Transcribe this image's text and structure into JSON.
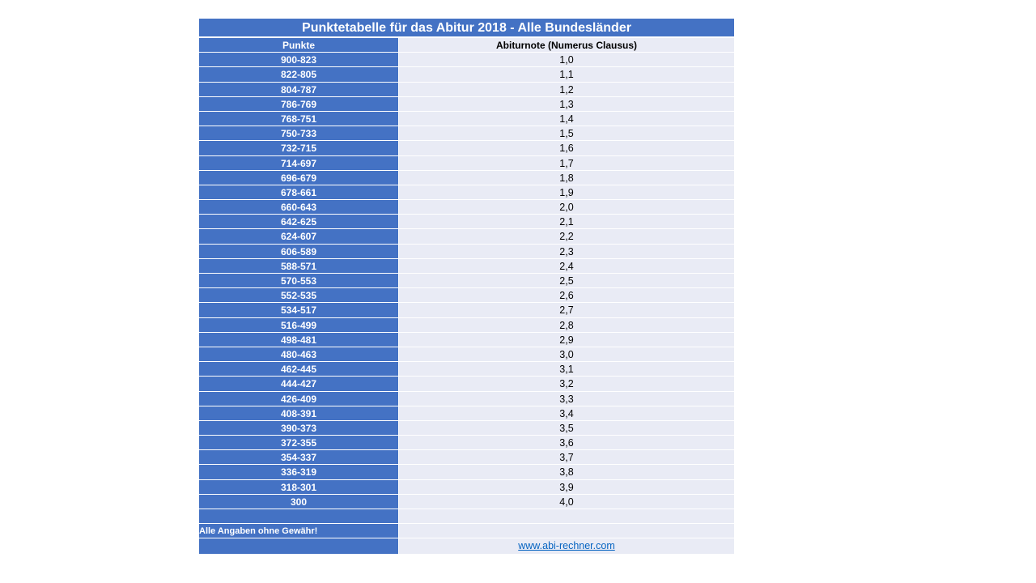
{
  "title": "Punktetabelle für das Abitur 2018 - Alle Bundesländer",
  "columns": [
    "Punkte",
    "Abiturnote (Numerus Clausus)"
  ],
  "rows": [
    [
      "900-823",
      "1,0"
    ],
    [
      "822-805",
      "1,1"
    ],
    [
      "804-787",
      "1,2"
    ],
    [
      "786-769",
      "1,3"
    ],
    [
      "768-751",
      "1,4"
    ],
    [
      "750-733",
      "1,5"
    ],
    [
      "732-715",
      "1,6"
    ],
    [
      "714-697",
      "1,7"
    ],
    [
      "696-679",
      "1,8"
    ],
    [
      "678-661",
      "1,9"
    ],
    [
      "660-643",
      "2,0"
    ],
    [
      "642-625",
      "2,1"
    ],
    [
      "624-607",
      "2,2"
    ],
    [
      "606-589",
      "2,3"
    ],
    [
      "588-571",
      "2,4"
    ],
    [
      "570-553",
      "2,5"
    ],
    [
      "552-535",
      "2,6"
    ],
    [
      "534-517",
      "2,7"
    ],
    [
      "516-499",
      "2,8"
    ],
    [
      "498-481",
      "2,9"
    ],
    [
      "480-463",
      "3,0"
    ],
    [
      "462-445",
      "3,1"
    ],
    [
      "444-427",
      "3,2"
    ],
    [
      "426-409",
      "3,3"
    ],
    [
      "408-391",
      "3,4"
    ],
    [
      "390-373",
      "3,5"
    ],
    [
      "372-355",
      "3,6"
    ],
    [
      "354-337",
      "3,7"
    ],
    [
      "336-319",
      "3,8"
    ],
    [
      "318-301",
      "3,9"
    ],
    [
      "300",
      "4,0"
    ]
  ],
  "disclaimer": "Alle Angaben ohne Gewähr!",
  "link": "www.abi-rechner.com",
  "colors": {
    "header_blue": "#4472C4",
    "cell_light": "#E9EBF5",
    "link": "#0563C1"
  }
}
